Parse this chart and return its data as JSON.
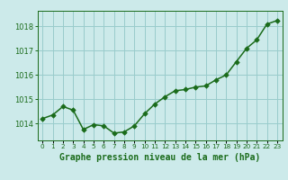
{
  "x": [
    0,
    1,
    2,
    3,
    4,
    5,
    6,
    7,
    8,
    9,
    10,
    11,
    12,
    13,
    14,
    15,
    16,
    17,
    18,
    19,
    20,
    21,
    22,
    23
  ],
  "y": [
    1014.2,
    1014.35,
    1014.7,
    1014.55,
    1013.75,
    1013.95,
    1013.9,
    1013.6,
    1013.65,
    1013.9,
    1014.4,
    1014.8,
    1015.1,
    1015.35,
    1015.4,
    1015.5,
    1015.55,
    1015.8,
    1016.0,
    1016.55,
    1017.1,
    1017.45,
    1018.1,
    1018.25
  ],
  "line_color": "#1a6b1a",
  "marker_color": "#1a6b1a",
  "bg_color": "#cceaea",
  "grid_color": "#99cccc",
  "ylabel_ticks": [
    1014,
    1015,
    1016,
    1017,
    1018
  ],
  "xlabel_label": "Graphe pression niveau de la mer (hPa)",
  "ylim": [
    1013.3,
    1018.65
  ],
  "xlim": [
    -0.5,
    23.5
  ],
  "tick_color": "#1a6b1a",
  "label_color": "#1a6b1a",
  "xlabel_fontsize": 7.0,
  "ytick_fontsize": 6.0,
  "xtick_fontsize": 5.2,
  "linewidth": 1.1,
  "markersize": 2.8
}
